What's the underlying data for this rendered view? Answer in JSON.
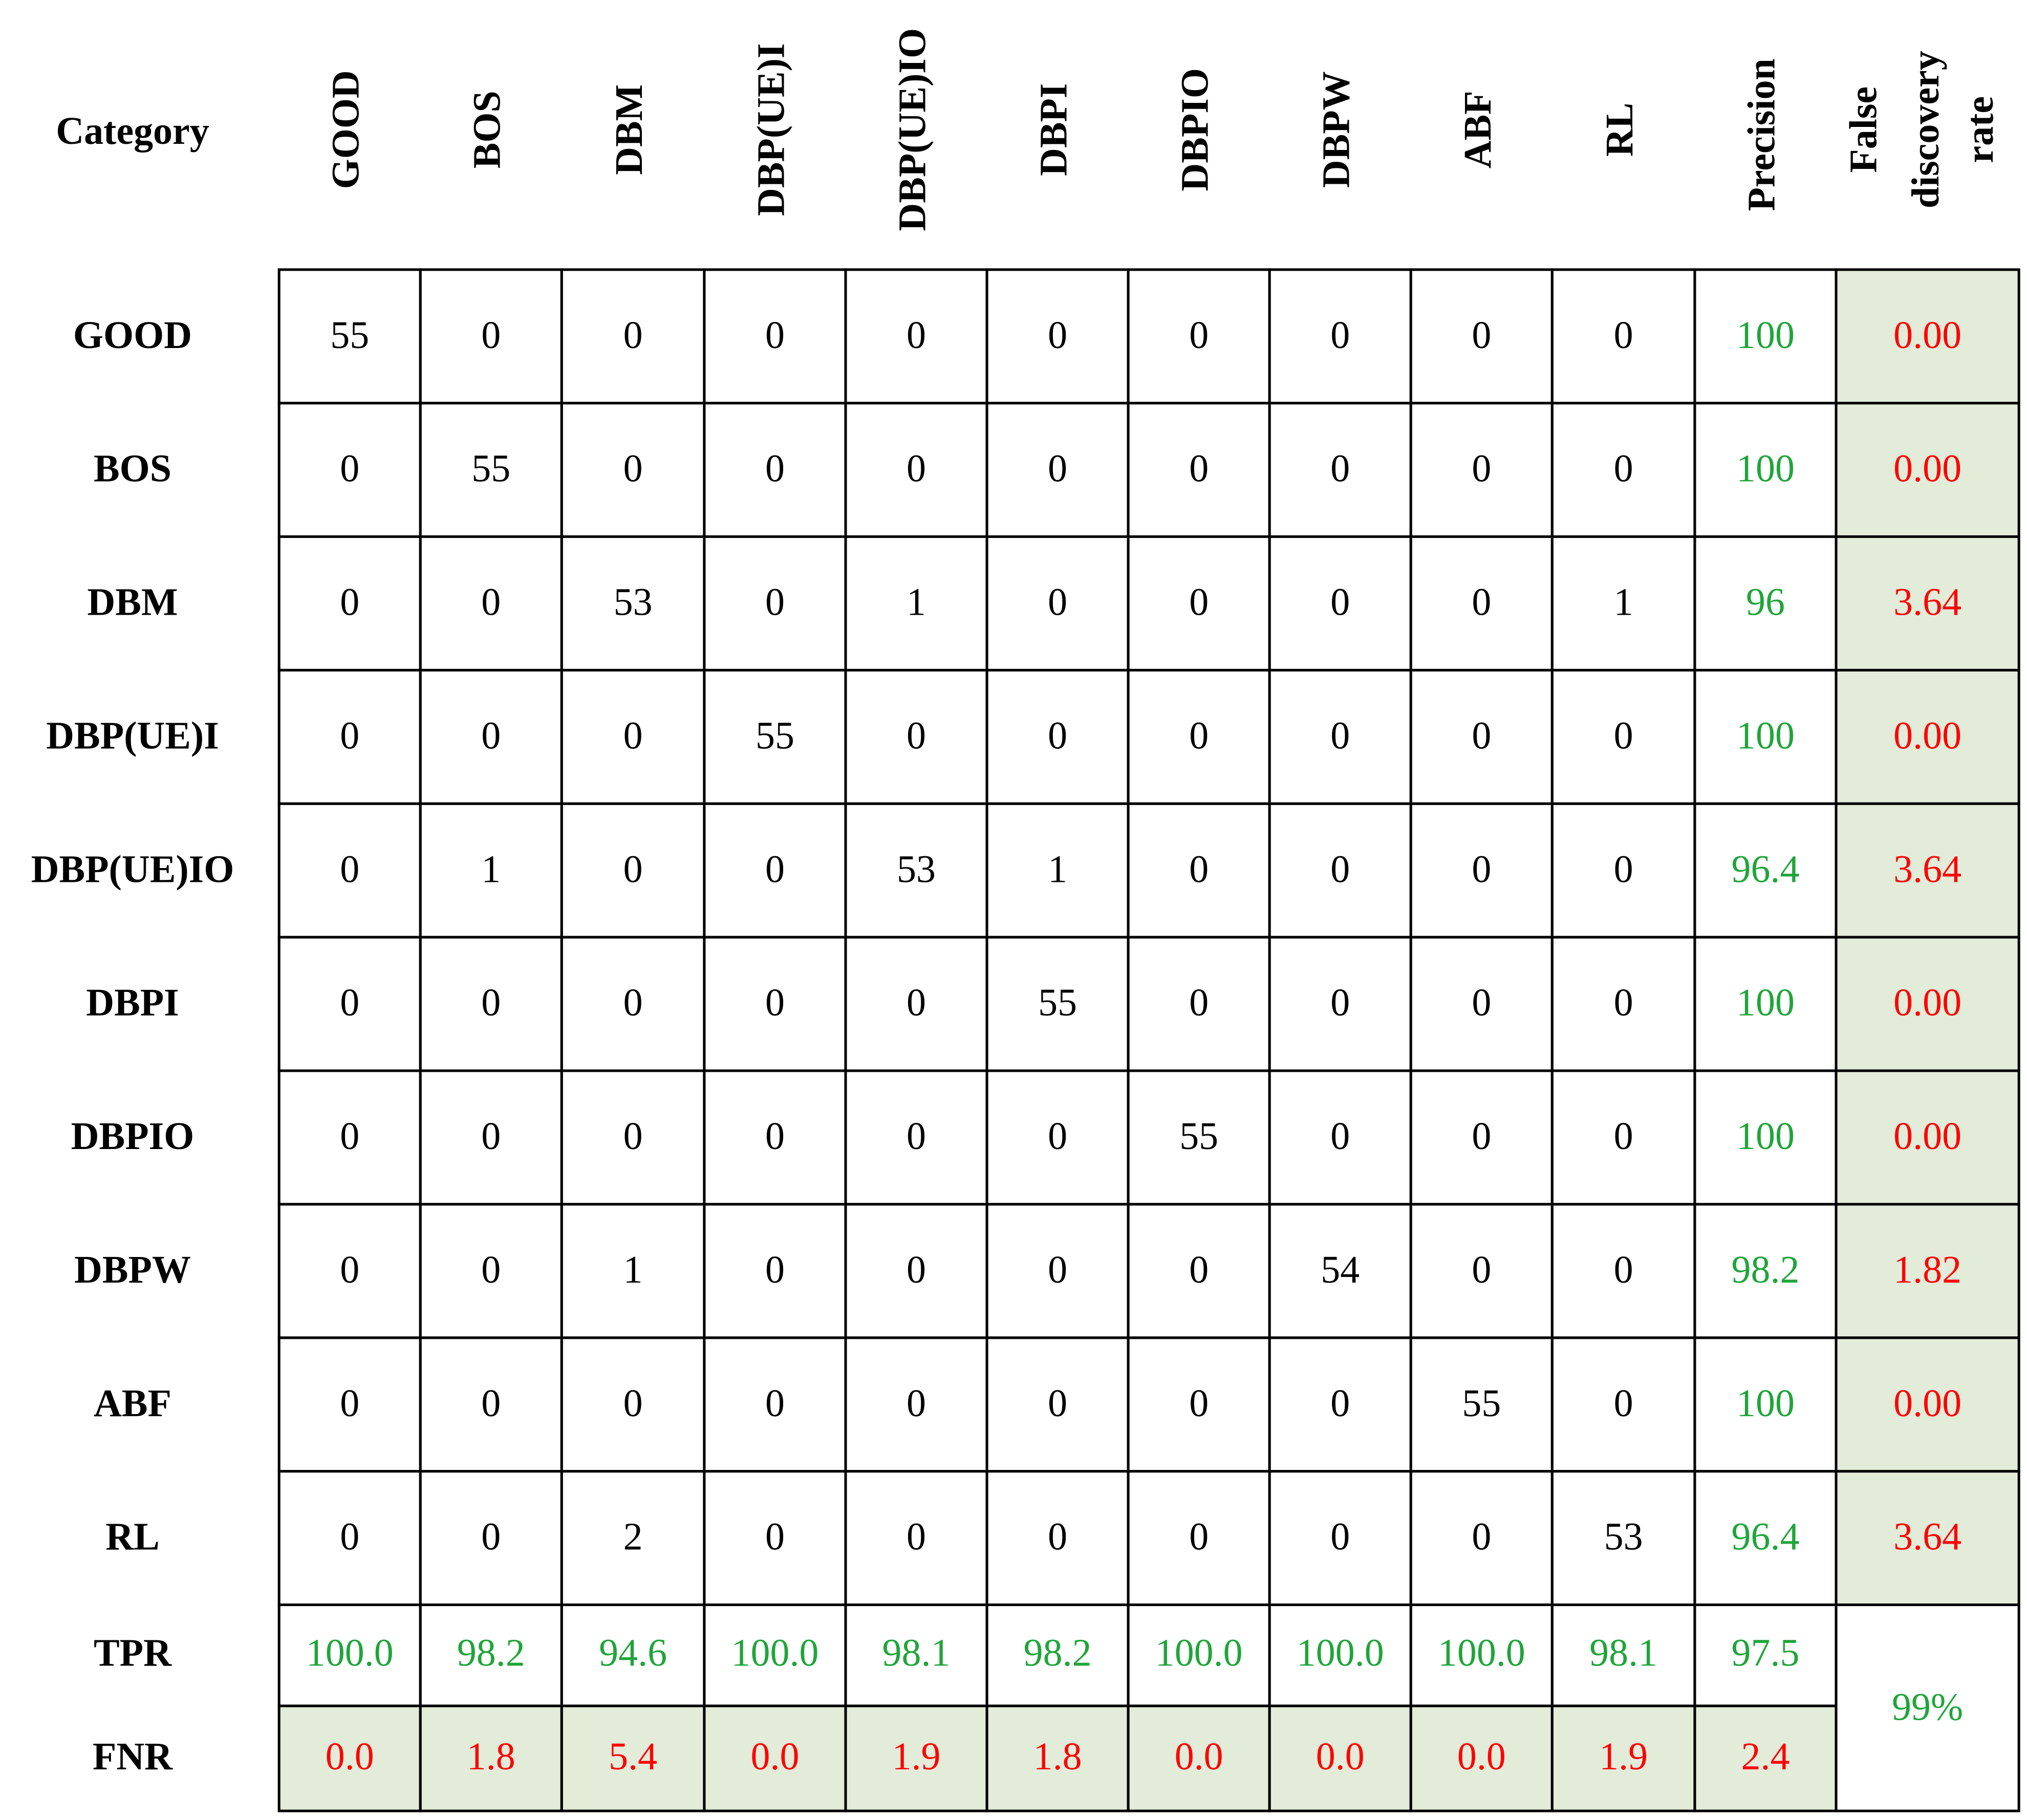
{
  "corner": "Category",
  "columns": [
    "GOOD",
    "BOS",
    "DBM",
    "DBP(UE)I",
    "DBP(UE)IO",
    "DBPI",
    "DBPIO",
    "DBPW",
    "ABF",
    "RL"
  ],
  "precision_header": "Precision",
  "fdr_header": [
    "False",
    "discovery",
    "rate"
  ],
  "rows": [
    {
      "label": "GOOD",
      "cells": [
        "55",
        "0",
        "0",
        "0",
        "0",
        "0",
        "0",
        "0",
        "0",
        "0"
      ],
      "precision": "100",
      "fdr": "0.00"
    },
    {
      "label": "BOS",
      "cells": [
        "0",
        "55",
        "0",
        "0",
        "0",
        "0",
        "0",
        "0",
        "0",
        "0"
      ],
      "precision": "100",
      "fdr": "0.00"
    },
    {
      "label": "DBM",
      "cells": [
        "0",
        "0",
        "53",
        "0",
        "1",
        "0",
        "0",
        "0",
        "0",
        "1"
      ],
      "precision": "96",
      "fdr": "3.64"
    },
    {
      "label": "DBP(UE)I",
      "cells": [
        "0",
        "0",
        "0",
        "55",
        "0",
        "0",
        "0",
        "0",
        "0",
        "0"
      ],
      "precision": "100",
      "fdr": "0.00"
    },
    {
      "label": "DBP(UE)IO",
      "cells": [
        "0",
        "1",
        "0",
        "0",
        "53",
        "1",
        "0",
        "0",
        "0",
        "0"
      ],
      "precision": "96.4",
      "fdr": "3.64"
    },
    {
      "label": "DBPI",
      "cells": [
        "0",
        "0",
        "0",
        "0",
        "0",
        "55",
        "0",
        "0",
        "0",
        "0"
      ],
      "precision": "100",
      "fdr": "0.00"
    },
    {
      "label": "DBPIO",
      "cells": [
        "0",
        "0",
        "0",
        "0",
        "0",
        "0",
        "55",
        "0",
        "0",
        "0"
      ],
      "precision": "100",
      "fdr": "0.00"
    },
    {
      "label": "DBPW",
      "cells": [
        "0",
        "0",
        "1",
        "0",
        "0",
        "0",
        "0",
        "54",
        "0",
        "0"
      ],
      "precision": "98.2",
      "fdr": "1.82"
    },
    {
      "label": "ABF",
      "cells": [
        "0",
        "0",
        "0",
        "0",
        "0",
        "0",
        "0",
        "0",
        "55",
        "0"
      ],
      "precision": "100",
      "fdr": "0.00"
    },
    {
      "label": "RL",
      "cells": [
        "0",
        "0",
        "2",
        "0",
        "0",
        "0",
        "0",
        "0",
        "0",
        "53"
      ],
      "precision": "96.4",
      "fdr": "3.64"
    }
  ],
  "tpr": {
    "label": "TPR",
    "values": [
      "100.0",
      "98.2",
      "94.6",
      "100.0",
      "98.1",
      "98.2",
      "100.0",
      "100.0",
      "100.0",
      "98.1",
      "97.5"
    ]
  },
  "fnr": {
    "label": "FNR",
    "values": [
      "0.0",
      "1.8",
      "5.4",
      "0.0",
      "1.9",
      "1.8",
      "0.0",
      "0.0",
      "0.0",
      "1.9",
      "2.4"
    ]
  },
  "accuracy": "99%"
}
